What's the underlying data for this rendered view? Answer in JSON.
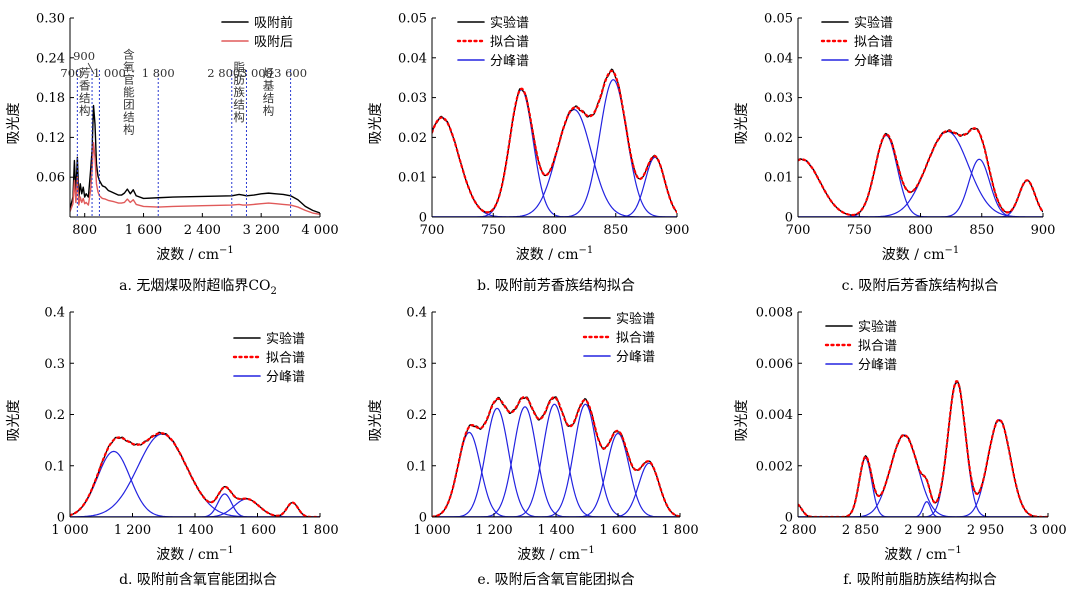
{
  "labels": {
    "ylabel": "吸光度",
    "xlabel_prefix": "波数 / cm",
    "xlabel_exp": "−1"
  },
  "colors": {
    "exp": "#000000",
    "fit": "#ff0000",
    "peak": "#2323e0",
    "red_line": "#e05a5a",
    "divider": "#2a3bd1"
  },
  "chart_data": [
    {
      "id": "a",
      "type": "line",
      "caption_main": "a. 无烟煤吸附超临界CO",
      "caption_sub": "2",
      "xlim": [
        600,
        4000
      ],
      "ylim": [
        0,
        0.3
      ],
      "xticks": [
        800,
        1600,
        2400,
        3200,
        4000
      ],
      "xtick_labels": [
        "800",
        "1 600",
        "2 400",
        "3 200",
        "4 000"
      ],
      "yticks": [
        0.06,
        0.12,
        0.18,
        0.24,
        0.3
      ],
      "ytick_labels": [
        "0.06",
        "0.12",
        "0.18",
        "0.24",
        "0.30"
      ],
      "legend": [
        "吸附前",
        "吸附后"
      ],
      "dividers": [
        700,
        900,
        1000,
        1800,
        2800,
        3000,
        3600
      ],
      "divider_labels": [
        "700",
        "900",
        "1 000",
        "1 800",
        "2 800",
        "3 000",
        "3 600"
      ],
      "regions": [
        "芳香结构",
        "含氧官能团结构",
        "脂肪族结构",
        "烃基结构"
      ],
      "series": [
        {
          "name": "吸附前",
          "x": [
            600,
            640,
            660,
            680,
            700,
            720,
            740,
            760,
            780,
            800,
            820,
            850,
            880,
            900,
            920,
            940,
            960,
            980,
            1000,
            1040,
            1080,
            1120,
            1160,
            1200,
            1260,
            1300,
            1340,
            1380,
            1420,
            1460,
            1500,
            1600,
            1800,
            2000,
            2400,
            2800,
            2900,
            2950,
            3000,
            3100,
            3200,
            3300,
            3400,
            3500,
            3600,
            3700,
            3800,
            3900,
            4000
          ],
          "y": [
            0.012,
            0.03,
            0.085,
            0.035,
            0.09,
            0.03,
            0.05,
            0.035,
            0.045,
            0.03,
            0.035,
            0.03,
            0.07,
            0.1,
            0.168,
            0.14,
            0.08,
            0.062,
            0.055,
            0.047,
            0.045,
            0.04,
            0.038,
            0.036,
            0.033,
            0.033,
            0.036,
            0.042,
            0.035,
            0.041,
            0.032,
            0.028,
            0.029,
            0.03,
            0.031,
            0.032,
            0.034,
            0.033,
            0.032,
            0.033,
            0.035,
            0.036,
            0.035,
            0.034,
            0.032,
            0.026,
            0.016,
            0.01,
            0.006
          ]
        },
        {
          "name": "吸附后",
          "x": [
            600,
            640,
            660,
            680,
            700,
            720,
            740,
            760,
            780,
            800,
            820,
            850,
            880,
            900,
            920,
            940,
            960,
            980,
            1000,
            1040,
            1080,
            1120,
            1160,
            1200,
            1260,
            1300,
            1340,
            1380,
            1420,
            1460,
            1500,
            1600,
            1800,
            2000,
            2400,
            2800,
            2900,
            2950,
            3000,
            3100,
            3200,
            3300,
            3400,
            3500,
            3600,
            3700,
            3800,
            3900,
            4000
          ],
          "y": [
            0.008,
            0.02,
            0.055,
            0.022,
            0.06,
            0.018,
            0.03,
            0.022,
            0.028,
            0.02,
            0.022,
            0.018,
            0.04,
            0.07,
            0.112,
            0.09,
            0.05,
            0.038,
            0.032,
            0.028,
            0.027,
            0.025,
            0.024,
            0.023,
            0.021,
            0.021,
            0.022,
            0.027,
            0.022,
            0.026,
            0.019,
            0.016,
            0.015,
            0.016,
            0.017,
            0.018,
            0.019,
            0.018,
            0.018,
            0.019,
            0.02,
            0.021,
            0.02,
            0.019,
            0.018,
            0.015,
            0.01,
            0.006,
            0.004
          ]
        }
      ]
    },
    {
      "id": "b",
      "type": "line",
      "caption_main": "b. 吸附前芳香族结构拟合",
      "xlim": [
        700,
        900
      ],
      "ylim": [
        0,
        0.05
      ],
      "xticks": [
        700,
        750,
        800,
        850,
        900
      ],
      "xtick_labels": [
        "700",
        "750",
        "800",
        "850",
        "900"
      ],
      "yticks": [
        0,
        0.01,
        0.02,
        0.03,
        0.04,
        0.05
      ],
      "ytick_labels": [
        "0",
        "0.01",
        "0.02",
        "0.03",
        "0.04",
        "0.05"
      ],
      "legend": [
        "实验谱",
        "拟合谱",
        "分峰谱"
      ],
      "peaks": [
        {
          "center": 708,
          "amp": 0.025,
          "sigma": 14
        },
        {
          "center": 773,
          "amp": 0.032,
          "sigma": 9.5
        },
        {
          "center": 816,
          "amp": 0.027,
          "sigma": 14
        },
        {
          "center": 848,
          "amp": 0.0345,
          "sigma": 11
        },
        {
          "center": 882,
          "amp": 0.015,
          "sigma": 8
        }
      ]
    },
    {
      "id": "c",
      "type": "line",
      "caption_main": "c. 吸附后芳香族结构拟合",
      "xlim": [
        700,
        900
      ],
      "ylim": [
        0,
        0.05
      ],
      "xticks": [
        700,
        750,
        800,
        850,
        900
      ],
      "xtick_labels": [
        "700",
        "750",
        "800",
        "850",
        "900"
      ],
      "yticks": [
        0,
        0.01,
        0.02,
        0.03,
        0.04,
        0.05
      ],
      "ytick_labels": [
        "0",
        "0.01",
        "0.02",
        "0.03",
        "0.04",
        "0.05"
      ],
      "legend": [
        "实验谱",
        "拟合谱",
        "分峰谱"
      ],
      "peaks": [
        {
          "center": 703,
          "amp": 0.0145,
          "sigma": 15
        },
        {
          "center": 772,
          "amp": 0.0205,
          "sigma": 9
        },
        {
          "center": 822,
          "amp": 0.0215,
          "sigma": 17
        },
        {
          "center": 848,
          "amp": 0.0145,
          "sigma": 8.5
        },
        {
          "center": 887,
          "amp": 0.0092,
          "sigma": 6.5
        }
      ]
    },
    {
      "id": "d",
      "type": "line",
      "caption_main": "d. 吸附前含氧官能团拟合",
      "xlim": [
        1000,
        1800
      ],
      "ylim": [
        0,
        0.4
      ],
      "xticks": [
        1000,
        1200,
        1400,
        1600,
        1800
      ],
      "xtick_labels": [
        "1 000",
        "1 200",
        "1 400",
        "1 600",
        "1 800"
      ],
      "yticks": [
        0,
        0.1,
        0.2,
        0.3,
        0.4
      ],
      "ytick_labels": [
        "0",
        "0.1",
        "0.2",
        "0.3",
        "0.4"
      ],
      "legend": [
        "实验谱",
        "拟合谱",
        "分峰谱"
      ],
      "peaks": [
        {
          "center": 1140,
          "amp": 0.128,
          "sigma": 52
        },
        {
          "center": 1295,
          "amp": 0.162,
          "sigma": 78
        },
        {
          "center": 1495,
          "amp": 0.045,
          "sigma": 22
        },
        {
          "center": 1565,
          "amp": 0.035,
          "sigma": 40
        },
        {
          "center": 1712,
          "amp": 0.028,
          "sigma": 18
        }
      ]
    },
    {
      "id": "e",
      "type": "line",
      "caption_main": "e. 吸附后含氧官能团拟合",
      "xlim": [
        1000,
        1800
      ],
      "ylim": [
        0,
        0.4
      ],
      "xticks": [
        1000,
        1200,
        1400,
        1600,
        1800
      ],
      "xtick_labels": [
        "1 000",
        "1 200",
        "1 400",
        "1 600",
        "1 800"
      ],
      "yticks": [
        0,
        0.1,
        0.2,
        0.3,
        0.4
      ],
      "ytick_labels": [
        "0",
        "0.1",
        "0.2",
        "0.3",
        "0.4"
      ],
      "legend": [
        "实验谱",
        "拟合谱",
        "分峰谱"
      ],
      "peaks": [
        {
          "center": 1120,
          "amp": 0.165,
          "sigma": 36
        },
        {
          "center": 1210,
          "amp": 0.212,
          "sigma": 37
        },
        {
          "center": 1300,
          "amp": 0.215,
          "sigma": 37
        },
        {
          "center": 1395,
          "amp": 0.22,
          "sigma": 37
        },
        {
          "center": 1495,
          "amp": 0.22,
          "sigma": 37
        },
        {
          "center": 1600,
          "amp": 0.163,
          "sigma": 36
        },
        {
          "center": 1700,
          "amp": 0.105,
          "sigma": 33
        }
      ]
    },
    {
      "id": "f",
      "type": "line",
      "caption_main": "f. 吸附前脂肪族结构拟合",
      "xlim": [
        2800,
        3000
      ],
      "ylim": [
        0,
        0.008
      ],
      "xticks": [
        2800,
        2850,
        2900,
        2950,
        3000
      ],
      "xtick_labels": [
        "2 800",
        "2 850",
        "2 900",
        "2 950",
        "3 000"
      ],
      "yticks": [
        0,
        0.002,
        0.004,
        0.006,
        0.008
      ],
      "ytick_labels": [
        "0",
        "0.002",
        "0.004",
        "0.006",
        "0.008"
      ],
      "legend": [
        "实验谱",
        "拟合谱",
        "分峰谱"
      ],
      "peaks": [
        {
          "center": 2799,
          "amp": 0.0005,
          "sigma": 4
        },
        {
          "center": 2854,
          "amp": 0.0023,
          "sigma": 5
        },
        {
          "center": 2885,
          "amp": 0.0032,
          "sigma": 11
        },
        {
          "center": 2903,
          "amp": 0.0006,
          "sigma": 3
        },
        {
          "center": 2927,
          "amp": 0.0053,
          "sigma": 7
        },
        {
          "center": 2961,
          "amp": 0.0038,
          "sigma": 9
        }
      ]
    }
  ]
}
